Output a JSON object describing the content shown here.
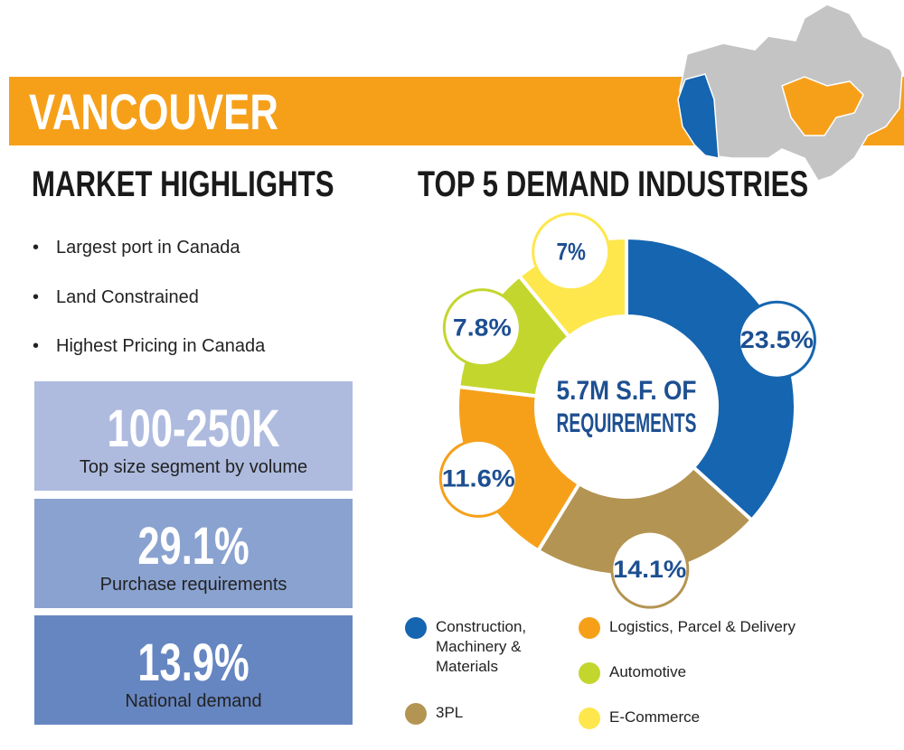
{
  "header": {
    "title": "VANCOUVER"
  },
  "highlights": {
    "title": "MARKET HIGHLIGHTS",
    "bullets": [
      "Largest port in Canada",
      "Land Constrained",
      "Highest Pricing in Canada"
    ]
  },
  "stats": [
    {
      "value": "100-250K",
      "label": "Top size segment by volume"
    },
    {
      "value": "29.1%",
      "label": "Purchase requirements"
    },
    {
      "value": "13.9%",
      "label": "National demand"
    }
  ],
  "chart_data": {
    "type": "donut",
    "title": "TOP 5 DEMAND INDUSTRIES",
    "center_label": [
      "5.7M S.F. OF",
      "REQUIREMENTS"
    ],
    "categories": [
      "Construction, Machinery & Materials",
      "3PL",
      "Logistics, Parcel & Delivery",
      "Automotive",
      "E-Commerce"
    ],
    "values": [
      23.5,
      14.1,
      11.6,
      7.8,
      7
    ],
    "value_labels": [
      "23.5%",
      "14.1%",
      "11.6%",
      "7.8%",
      "7%"
    ],
    "colors": [
      "#1565b0",
      "#b39452",
      "#f6a01a",
      "#c3d62e",
      "#fde74c"
    ]
  }
}
